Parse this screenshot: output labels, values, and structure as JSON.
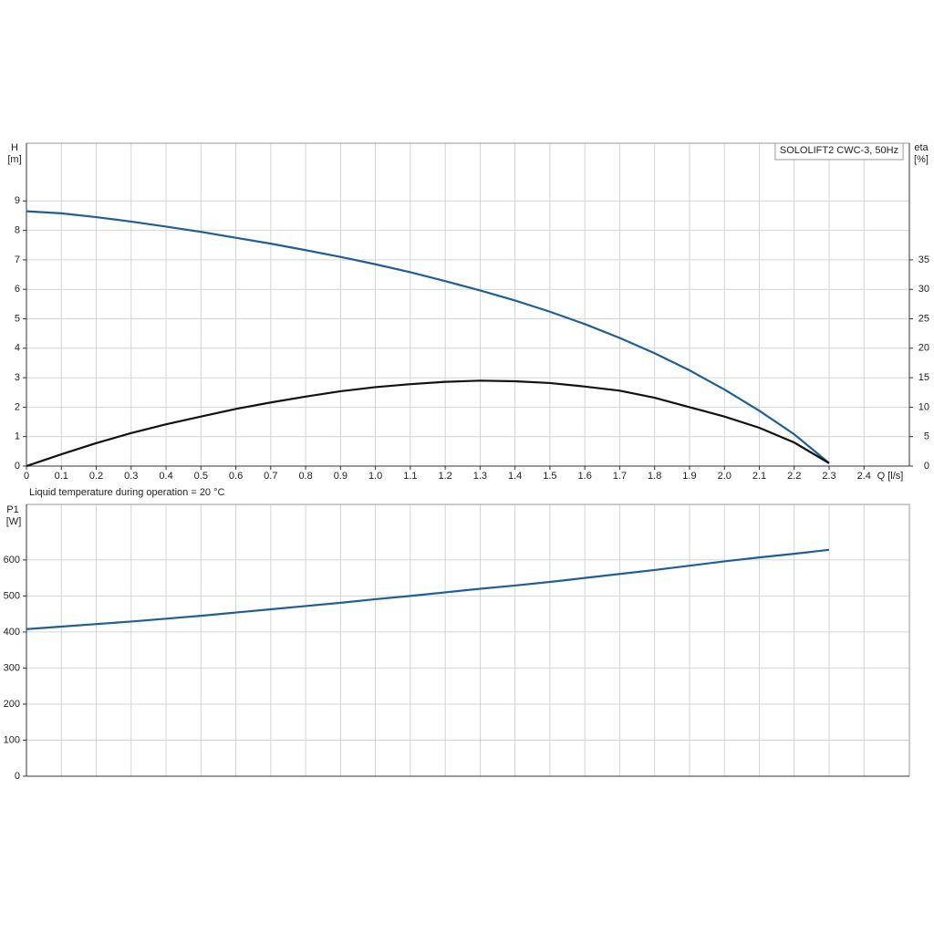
{
  "chart_data": [
    {
      "type": "line",
      "title": "SOLOLIFT2 CWC-3, 50Hz",
      "y_label": "H",
      "y_unit": "[m]",
      "y2_label": "eta",
      "y2_unit": "[%]",
      "x_label": "Q [l/s]",
      "annotation": "Liquid temperature during operation = 20 °C",
      "x": [
        0,
        0.1,
        0.2,
        0.3,
        0.4,
        0.5,
        0.6,
        0.7,
        0.8,
        0.9,
        1.0,
        1.1,
        1.2,
        1.3,
        1.4,
        1.5,
        1.6,
        1.7,
        1.8,
        1.9,
        2.0,
        2.1,
        2.2,
        2.3
      ],
      "xlim": [
        0,
        2.53
      ],
      "xticks": [
        0,
        0.1,
        0.2,
        0.3,
        0.4,
        0.5,
        0.6,
        0.7,
        0.8,
        0.9,
        {
          "value": 1,
          "label": "1.0"
        },
        1.1,
        1.2,
        1.3,
        1.4,
        1.5,
        1.6,
        1.7,
        1.8,
        1.9,
        {
          "value": 2,
          "label": "2.0"
        },
        2.1,
        2.2,
        2.3,
        2.4
      ],
      "ylim": [
        0,
        10.96
      ],
      "yticks": [
        0,
        1,
        2,
        3,
        4,
        5,
        6,
        7,
        8,
        9
      ],
      "y2lim": [
        0,
        54.8
      ],
      "y2ticks": [
        0,
        5,
        10,
        15,
        20,
        25,
        30,
        35
      ],
      "grid": true,
      "series": [
        {
          "color": "#215f92",
          "values": [
            8.65,
            8.58,
            8.45,
            8.3,
            8.13,
            7.95,
            7.75,
            7.55,
            7.33,
            7.1,
            6.85,
            6.58,
            6.28,
            5.96,
            5.62,
            5.24,
            4.82,
            4.35,
            3.83,
            3.25,
            2.6,
            1.88,
            1.08,
            0.1
          ]
        },
        {
          "color": "#111111",
          "axis": "y2",
          "values": [
            0,
            2.0,
            3.9,
            5.6,
            7.1,
            8.4,
            9.7,
            10.8,
            11.8,
            12.7,
            13.4,
            13.9,
            14.3,
            14.5,
            14.4,
            14.1,
            13.5,
            12.8,
            11.6,
            10.0,
            8.4,
            6.5,
            4.0,
            0.5
          ]
        }
      ]
    },
    {
      "type": "line",
      "y_label": "P1",
      "y_unit": "[W]",
      "x": [
        0,
        0.1,
        0.2,
        0.3,
        0.4,
        0.5,
        0.6,
        0.7,
        0.8,
        0.9,
        1.0,
        1.1,
        1.2,
        1.3,
        1.4,
        1.5,
        1.6,
        1.7,
        1.8,
        1.9,
        2.0,
        2.1,
        2.2,
        2.3
      ],
      "xlim": [
        0,
        2.53
      ],
      "ylim": [
        0,
        754
      ],
      "yticks": [
        0,
        100,
        200,
        300,
        400,
        500,
        600
      ],
      "grid": true,
      "series": [
        {
          "color": "#215f92",
          "values": [
            408,
            415,
            422,
            429,
            437,
            445,
            454,
            463,
            472,
            481,
            491,
            500,
            510,
            520,
            529,
            539,
            550,
            561,
            572,
            584,
            596,
            607,
            617,
            628
          ]
        }
      ]
    }
  ]
}
